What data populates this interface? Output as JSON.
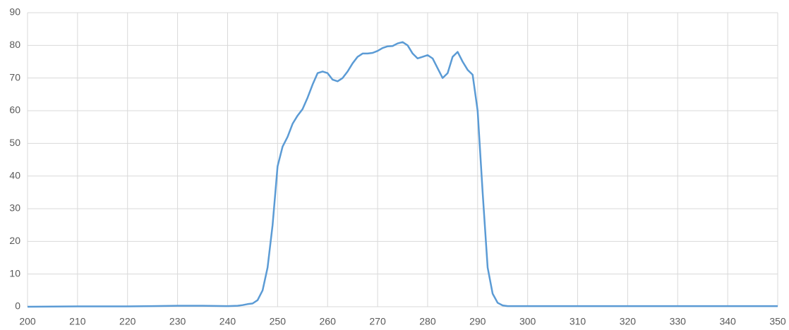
{
  "chart_data": {
    "type": "line",
    "x": [
      200,
      210,
      220,
      225,
      230,
      235,
      240,
      242,
      243,
      244,
      245,
      246,
      247,
      248,
      249,
      250,
      251,
      252,
      253,
      254,
      255,
      256,
      257,
      258,
      259,
      260,
      261,
      262,
      263,
      264,
      265,
      266,
      267,
      268,
      269,
      270,
      271,
      272,
      273,
      274,
      275,
      276,
      277,
      278,
      279,
      280,
      281,
      282,
      283,
      284,
      285,
      286,
      287,
      288,
      289,
      290,
      291,
      292,
      293,
      294,
      295,
      296,
      300,
      310,
      320,
      330,
      340,
      350
    ],
    "series": [
      {
        "color": "#5b9bd5",
        "values": [
          0,
          0.1,
          0.1,
          0.2,
          0.3,
          0.3,
          0.2,
          0.3,
          0.5,
          0.8,
          1,
          2,
          5,
          12,
          25,
          43,
          49,
          52,
          56,
          58.5,
          60.5,
          64,
          68,
          71.5,
          72,
          71.5,
          69.5,
          69,
          70,
          72,
          74.5,
          76.5,
          77.5,
          77.5,
          77.7,
          78.3,
          79.2,
          79.7,
          79.8,
          80.6,
          81,
          80,
          77.5,
          76,
          76.5,
          77,
          76,
          73,
          70,
          71.5,
          76.5,
          78,
          75,
          72.5,
          71,
          60,
          35,
          12,
          4,
          1.2,
          0.4,
          0.2,
          0.2,
          0.2,
          0.2,
          0.2,
          0.2,
          0.2
        ]
      }
    ],
    "xlim": [
      200,
      350
    ],
    "ylim": [
      0,
      90
    ],
    "xticks": [
      200,
      210,
      220,
      230,
      240,
      250,
      260,
      270,
      280,
      290,
      300,
      310,
      320,
      330,
      340,
      350
    ],
    "yticks": [
      0,
      10,
      20,
      30,
      40,
      50,
      60,
      70,
      80,
      90
    ],
    "grid": true
  }
}
